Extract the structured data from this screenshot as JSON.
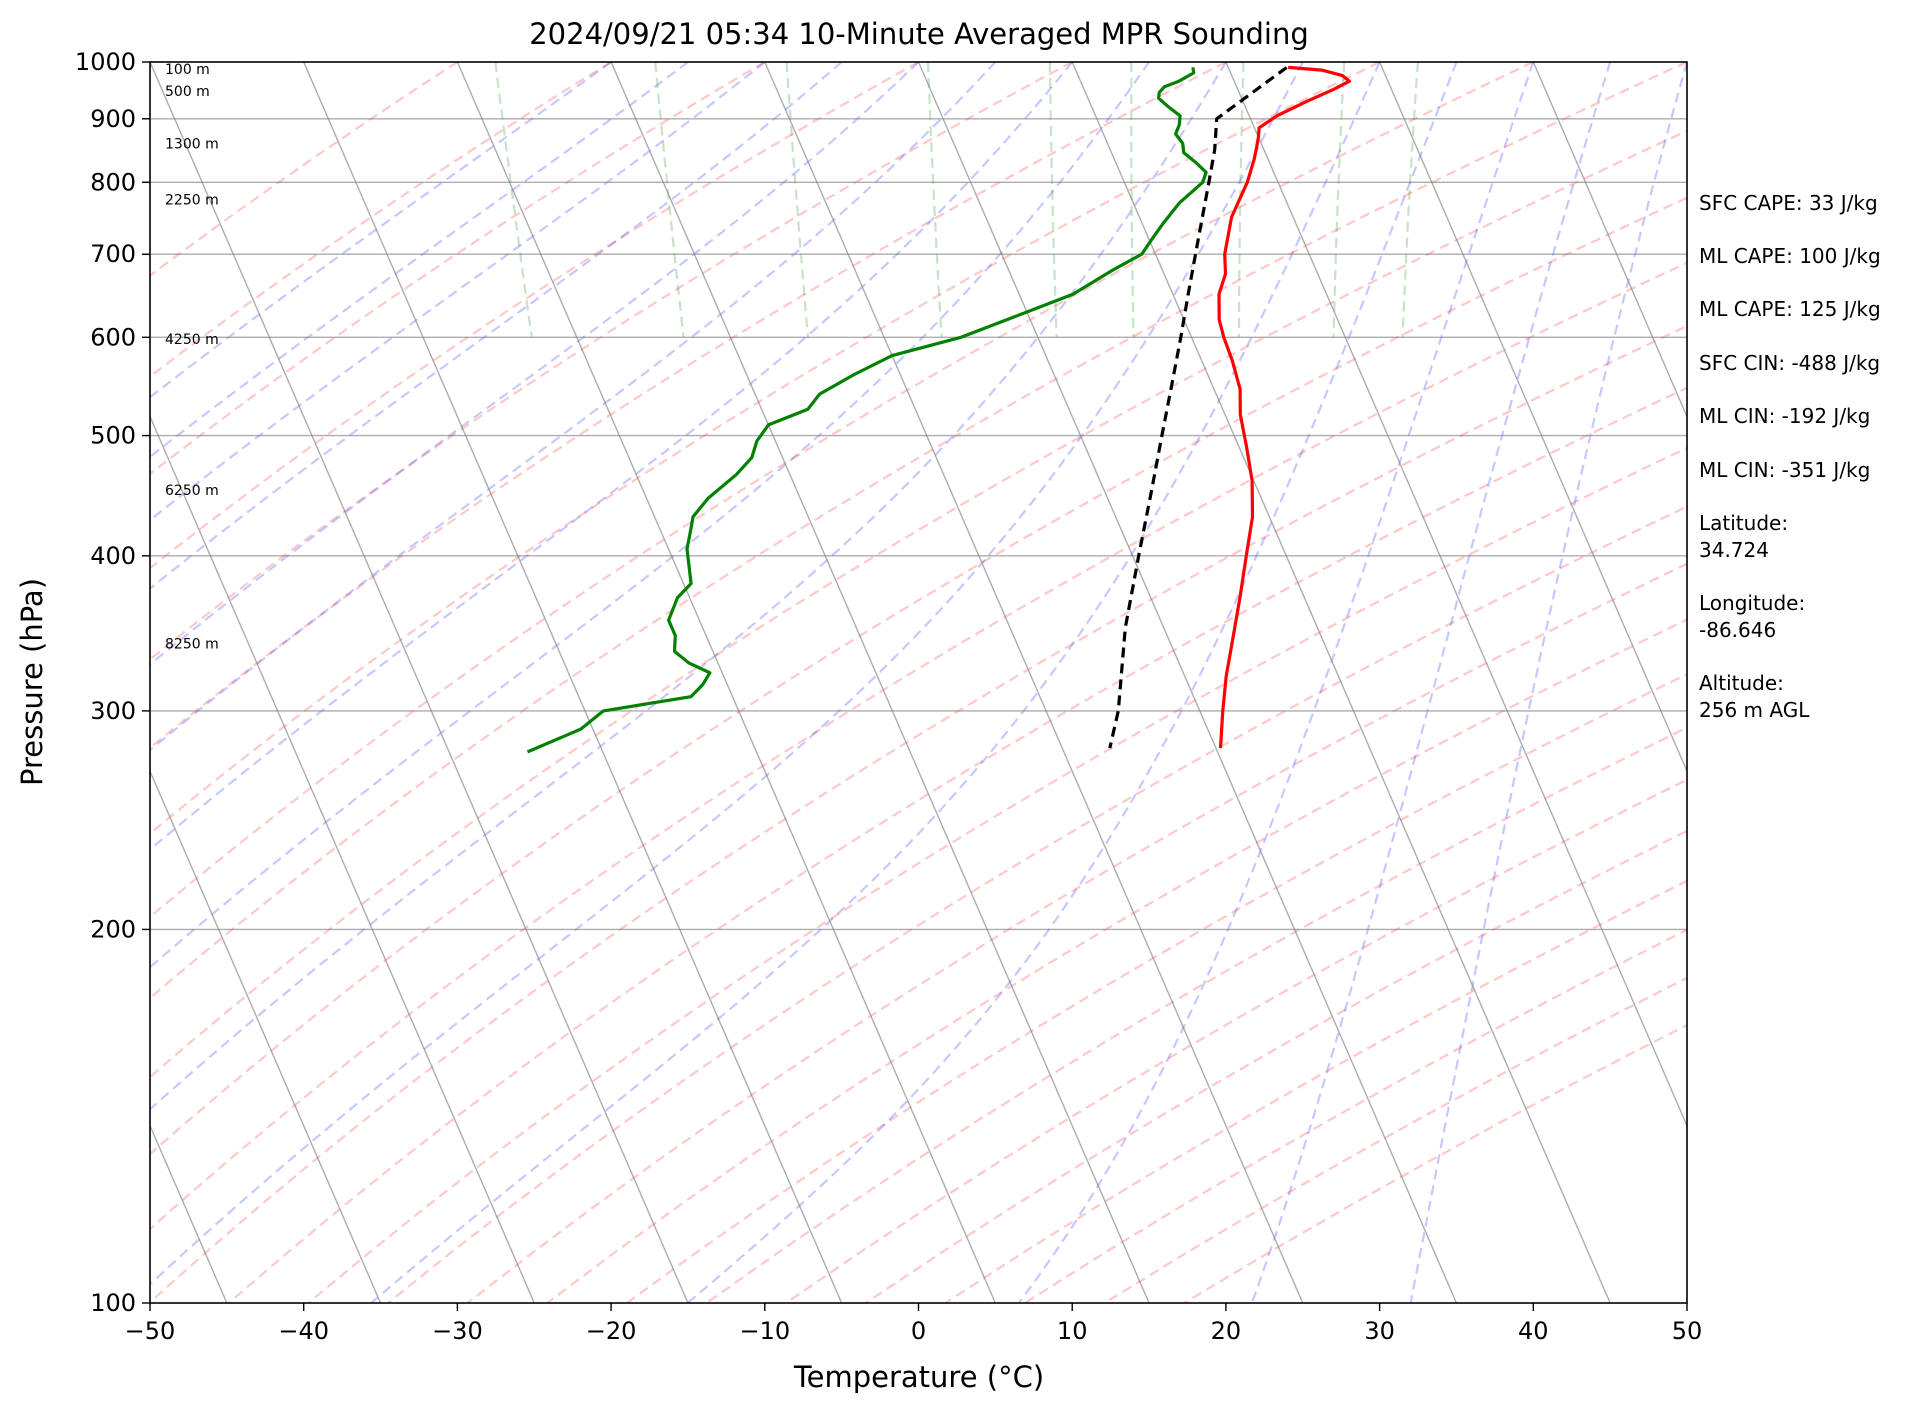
{
  "chart_data": {
    "type": "skew-t",
    "title": "2024/09/21 05:34 10-Minute Averaged MPR Sounding",
    "xlabel": "Temperature (°C)",
    "ylabel": "Pressure (hPa)",
    "xlim": [
      -50,
      50
    ],
    "ylim": [
      1000,
      100
    ],
    "y_scale": "log",
    "x_ticks": [
      "−50",
      "−40",
      "−30",
      "−20",
      "−10",
      "0",
      "10",
      "20",
      "30",
      "40",
      "50"
    ],
    "y_ticks": [
      "1000",
      "900",
      "800",
      "700",
      "600",
      "500",
      "400",
      "300",
      "200",
      "100"
    ],
    "grid": true,
    "series": [
      {
        "label": "temperature",
        "color": "#ff0000",
        "points": [
          [
            990,
            23.9
          ],
          [
            985,
            26.0
          ],
          [
            975,
            27.2
          ],
          [
            965,
            27.5
          ],
          [
            950,
            26.2
          ],
          [
            930,
            24.2
          ],
          [
            905,
            21.8
          ],
          [
            885,
            20.3
          ],
          [
            870,
            20.0
          ],
          [
            850,
            19.5
          ],
          [
            835,
            19.1
          ],
          [
            800,
            18.0
          ],
          [
            750,
            16.0
          ],
          [
            700,
            14.5
          ],
          [
            675,
            14.0
          ],
          [
            650,
            13.0
          ],
          [
            620,
            12.3
          ],
          [
            600,
            12.1
          ],
          [
            575,
            12.0
          ],
          [
            545,
            11.7
          ],
          [
            520,
            11.0
          ],
          [
            490,
            10.5
          ],
          [
            460,
            9.9
          ],
          [
            430,
            8.9
          ],
          [
            400,
            7.4
          ],
          [
            370,
            5.8
          ],
          [
            340,
            4.0
          ],
          [
            320,
            2.7
          ],
          [
            300,
            1.5
          ],
          [
            280,
            0.3
          ]
        ]
      },
      {
        "label": "dewpoint",
        "color": "#008000",
        "points": [
          [
            990,
            17.7
          ],
          [
            980,
            17.6
          ],
          [
            965,
            16.4
          ],
          [
            955,
            15.3
          ],
          [
            945,
            14.8
          ],
          [
            935,
            14.6
          ],
          [
            920,
            15.0
          ],
          [
            905,
            15.5
          ],
          [
            890,
            15.2
          ],
          [
            875,
            14.7
          ],
          [
            860,
            14.9
          ],
          [
            845,
            14.7
          ],
          [
            830,
            15.2
          ],
          [
            815,
            15.6
          ],
          [
            800,
            15.1
          ],
          [
            770,
            13.0
          ],
          [
            740,
            11.3
          ],
          [
            720,
            10.2
          ],
          [
            700,
            9.1
          ],
          [
            680,
            6.8
          ],
          [
            650,
            3.5
          ],
          [
            620,
            -1.5
          ],
          [
            600,
            -5.0
          ],
          [
            580,
            -10.0
          ],
          [
            560,
            -13.0
          ],
          [
            540,
            -15.8
          ],
          [
            525,
            -17.0
          ],
          [
            510,
            -20.0
          ],
          [
            495,
            -21.2
          ],
          [
            480,
            -22.0
          ],
          [
            465,
            -23.5
          ],
          [
            445,
            -26.0
          ],
          [
            430,
            -27.5
          ],
          [
            420,
            -28.0
          ],
          [
            405,
            -28.8
          ],
          [
            380,
            -29.5
          ],
          [
            370,
            -30.8
          ],
          [
            355,
            -32.0
          ],
          [
            345,
            -32.0
          ],
          [
            335,
            -32.5
          ],
          [
            328,
            -31.9
          ],
          [
            322,
            -30.8
          ],
          [
            315,
            -31.6
          ],
          [
            308,
            -32.7
          ],
          [
            300,
            -38.8
          ],
          [
            290,
            -40.8
          ],
          [
            278,
            -44.9
          ]
        ]
      },
      {
        "label": "parcel path",
        "color": "#000000",
        "style": "dashed",
        "points": [
          [
            990,
            23.8
          ],
          [
            900,
            17.8
          ],
          [
            850,
            16.8
          ],
          [
            800,
            15.5
          ],
          [
            750,
            14.1
          ],
          [
            700,
            12.6
          ],
          [
            650,
            11.0
          ],
          [
            600,
            9.3
          ],
          [
            550,
            7.4
          ],
          [
            500,
            5.3
          ],
          [
            450,
            3.0
          ],
          [
            400,
            0.4
          ],
          [
            350,
            -2.5
          ],
          [
            300,
            -5.3
          ],
          [
            280,
            -6.9
          ]
        ]
      }
    ],
    "reference_lines": {
      "dry_adiabats": {
        "color": "#ff0000",
        "style": "dashed"
      },
      "moist_adiabats": {
        "color": "#0000ff",
        "style": "dashed"
      },
      "mixing_ratio": {
        "color": "#008000",
        "style": "dashed"
      },
      "isotherms": {
        "color": "#808080",
        "style": "solid"
      }
    },
    "altitude_labels": [
      {
        "pressure": 987,
        "text": "100 m"
      },
      {
        "pressure": 948,
        "text": "500 m"
      },
      {
        "pressure": 860,
        "text": "1300 m"
      },
      {
        "pressure": 775,
        "text": "2250 m"
      },
      {
        "pressure": 598,
        "text": "4250 m"
      },
      {
        "pressure": 452,
        "text": "6250 m"
      },
      {
        "pressure": 340,
        "text": "8250 m"
      }
    ]
  },
  "info": {
    "sfc_cape": "SFC CAPE: 33 J/kg",
    "ml_cape_1": "ML CAPE: 100 J/kg",
    "ml_cape_2": "ML CAPE: 125 J/kg",
    "sfc_cin": "SFC CIN: -488 J/kg",
    "ml_cin_1": "ML CIN: -192 J/kg",
    "ml_cin_2": "ML CIN: -351 J/kg",
    "latitude_label": "Latitude:",
    "latitude_value": "34.724",
    "longitude_label": "Longitude:",
    "longitude_value": "-86.646",
    "altitude_label": "Altitude:",
    "altitude_value": "256 m AGL"
  }
}
